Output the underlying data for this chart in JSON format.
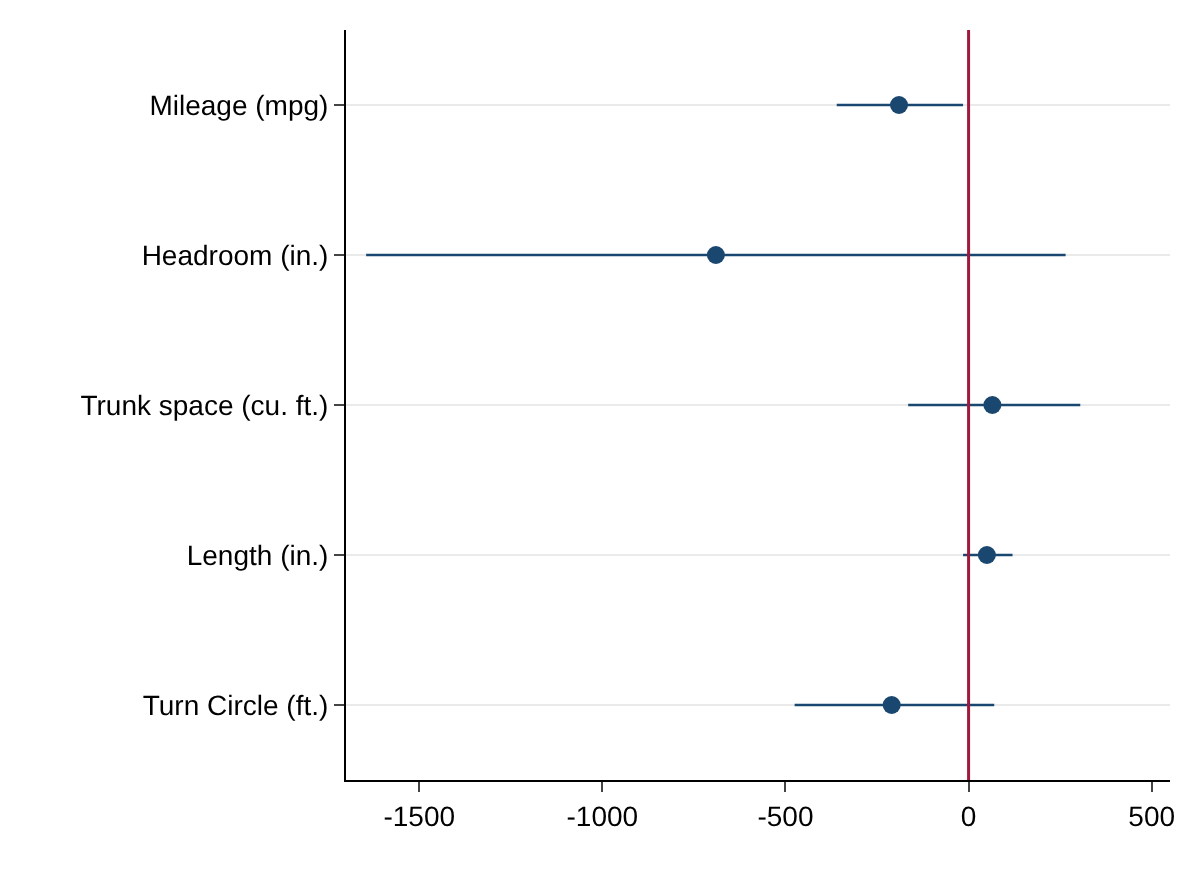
{
  "chart_data": {
    "type": "scatter",
    "orientation": "horizontal",
    "categories": [
      "Mileage (mpg)",
      "Headroom (in.)",
      "Trunk space (cu. ft.)",
      "Length (in.)",
      "Turn Circle (ft.)"
    ],
    "values": [
      -190,
      -690,
      65,
      50,
      -210
    ],
    "errors": [
      [
        -360,
        -15
      ],
      [
        -1645,
        265
      ],
      [
        -165,
        305
      ],
      [
        -15,
        120
      ],
      [
        -475,
        70
      ]
    ],
    "color": "#1a476f",
    "marker": "circle",
    "xlim": [
      -1700,
      550
    ],
    "xticks": [
      -1500,
      -1000,
      -500,
      0,
      500
    ],
    "ref_lines": [
      {
        "axis": "x",
        "value": 0,
        "color": "#a0193c"
      }
    ],
    "grid": "y"
  }
}
